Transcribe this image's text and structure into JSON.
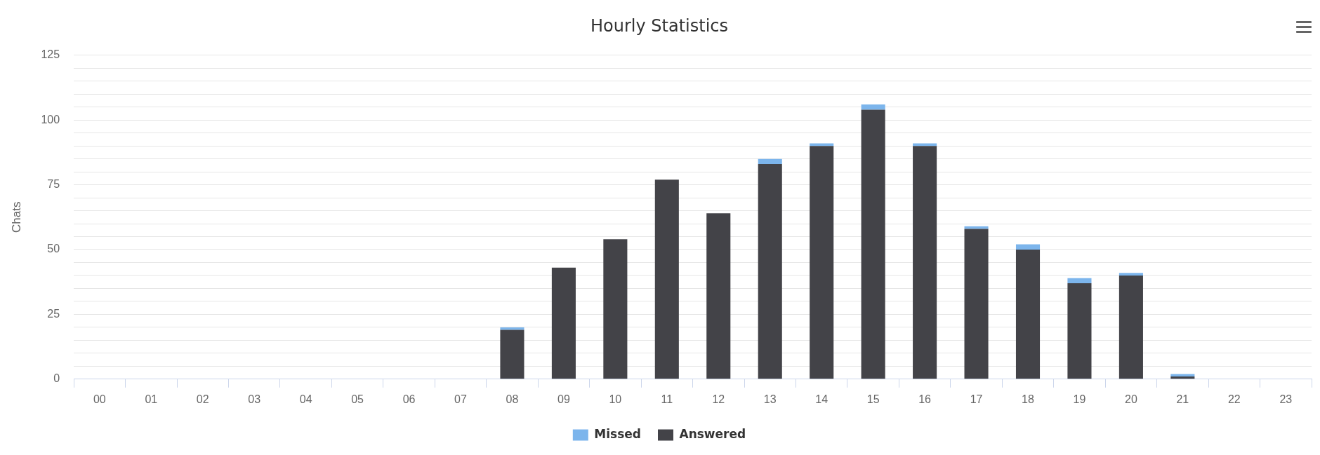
{
  "chart_data": {
    "type": "bar",
    "title": "Hourly Statistics",
    "ylabel": "Chats",
    "stacked": true,
    "grid": "y",
    "legend": "bottom",
    "categories": [
      "00",
      "01",
      "02",
      "03",
      "04",
      "05",
      "06",
      "07",
      "08",
      "09",
      "10",
      "11",
      "12",
      "13",
      "14",
      "15",
      "16",
      "17",
      "18",
      "19",
      "20",
      "21",
      "22",
      "23"
    ],
    "series": [
      {
        "name": "Answered",
        "color": "#434348",
        "values": [
          0,
          0,
          0,
          0,
          0,
          0,
          0,
          0,
          19,
          43,
          54,
          77,
          64,
          83,
          90,
          104,
          90,
          58,
          50,
          37,
          40,
          1,
          0,
          0
        ]
      },
      {
        "name": "Missed",
        "color": "#7cb5ec",
        "values": [
          0,
          0,
          0,
          0,
          0,
          0,
          0,
          0,
          1,
          0,
          0,
          0,
          0,
          2,
          1,
          2,
          1,
          1,
          2,
          2,
          1,
          1,
          0,
          0
        ]
      }
    ],
    "ylim": [
      0,
      125
    ],
    "yticks": [
      0,
      {
        "value": 5,
        "label": null
      },
      {
        "value": 10,
        "label": null
      },
      {
        "value": 15,
        "label": null
      },
      {
        "value": 20,
        "label": null
      },
      25,
      {
        "value": 30,
        "label": null
      },
      {
        "value": 35,
        "label": null
      },
      {
        "value": 40,
        "label": null
      },
      {
        "value": 45,
        "label": null
      },
      50,
      {
        "value": 55,
        "label": null
      },
      {
        "value": 60,
        "label": null
      },
      {
        "value": 65,
        "label": null
      },
      {
        "value": 70,
        "label": null
      },
      75,
      {
        "value": 80,
        "label": null
      },
      {
        "value": 85,
        "label": null
      },
      {
        "value": 90,
        "label": null
      },
      {
        "value": 95,
        "label": null
      },
      100,
      {
        "value": 105,
        "label": null
      },
      {
        "value": 110,
        "label": null
      },
      {
        "value": 115,
        "label": null
      },
      {
        "value": 120,
        "label": null
      },
      125
    ]
  }
}
